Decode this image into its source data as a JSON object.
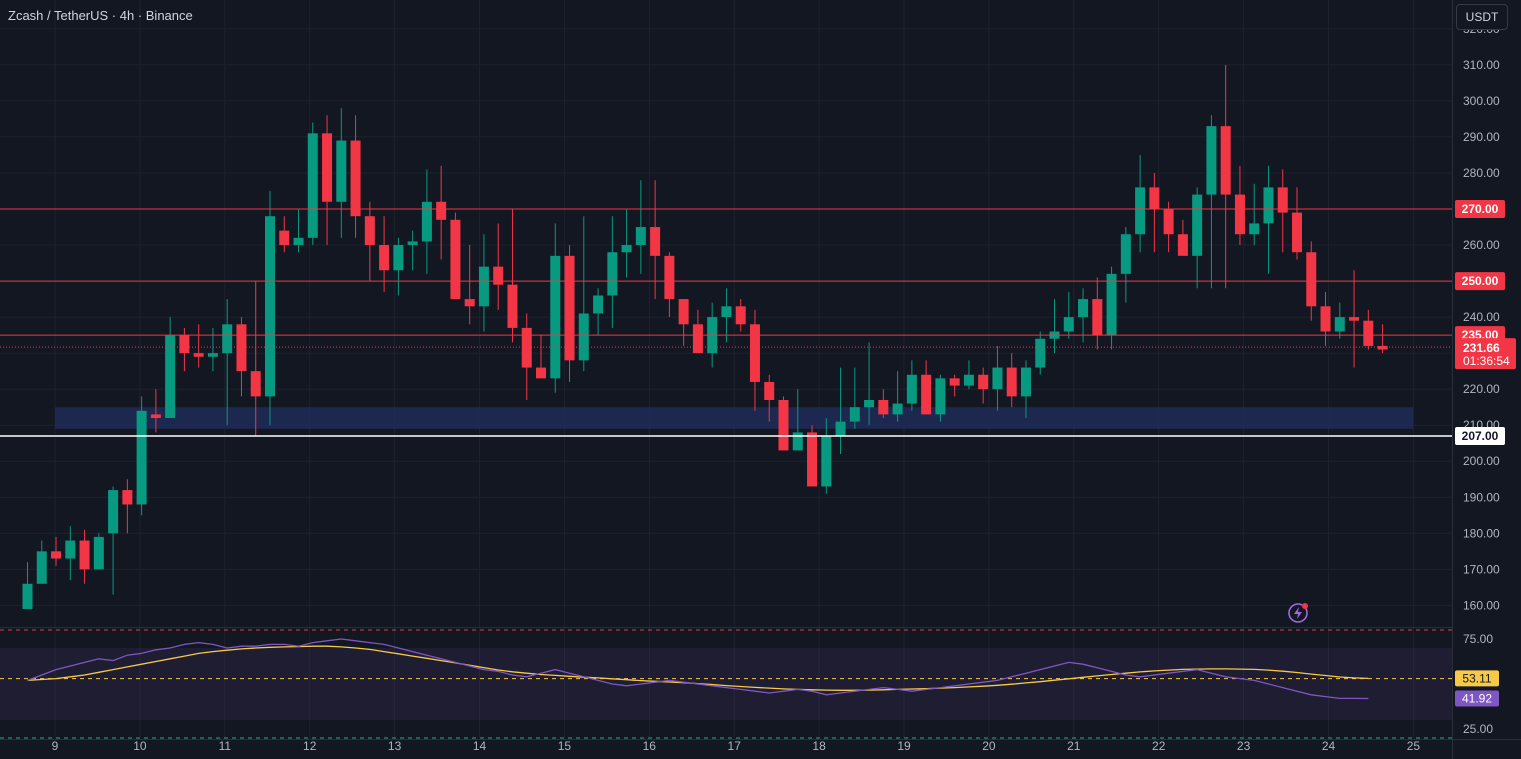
{
  "header": {
    "symbol_title": "Zcash / TetherUS · 4h · Binance",
    "currency_button": "USDT"
  },
  "colors": {
    "background": "#131722",
    "up": "#089981",
    "down": "#f23645",
    "level_line": "#f23645",
    "support_line": "#ffffff",
    "zone": "#1e2b57",
    "rsi_line": "#7e57c2",
    "rsi_ma_line": "#f7c948",
    "grid": "#1e222d"
  },
  "chart_data": [
    {
      "type": "candlestick",
      "y_ticks": [
        "160.00",
        "170.00",
        "180.00",
        "190.00",
        "200.00",
        "210.00",
        "220.00",
        "230.00",
        "240.00",
        "250.00",
        "260.00",
        "270.00",
        "280.00",
        "290.00",
        "300.00",
        "310.00",
        "320.00"
      ],
      "x_ticks": [
        "9",
        "10",
        "11",
        "12",
        "13",
        "14",
        "15",
        "16",
        "17",
        "18",
        "19",
        "20",
        "21",
        "22",
        "23",
        "24",
        "25"
      ],
      "ylim": [
        154,
        328
      ],
      "last_price": 231.66,
      "last_price_label": "231.66",
      "countdown": "01:36:54",
      "levels": [
        {
          "value": 270,
          "label": "270.00",
          "style": "red"
        },
        {
          "value": 250,
          "label": "250.00",
          "style": "red"
        },
        {
          "value": 235,
          "label": "235.00",
          "style": "red"
        },
        {
          "value": 207,
          "label": "207.00",
          "style": "white"
        }
      ],
      "zone": {
        "from": 209,
        "to": 215,
        "start_day": 9.0,
        "end_day": 25.0
      },
      "candles": [
        [
          159,
          159,
          166,
          172
        ],
        [
          166,
          166,
          175,
          178
        ],
        [
          175,
          171,
          173,
          179
        ],
        [
          173,
          167,
          178,
          182
        ],
        [
          178,
          166,
          170,
          181
        ],
        [
          170,
          170,
          179,
          180
        ],
        [
          180,
          163,
          192,
          193
        ],
        [
          192,
          180,
          188,
          195
        ],
        [
          188,
          185,
          214,
          218
        ],
        [
          213,
          208,
          212,
          220
        ],
        [
          212,
          212,
          235,
          240
        ],
        [
          235,
          225,
          230,
          237
        ],
        [
          230,
          226,
          229,
          238
        ],
        [
          229,
          225,
          230,
          237
        ],
        [
          230,
          210,
          238,
          245
        ],
        [
          238,
          218,
          225,
          240
        ],
        [
          225,
          207,
          218,
          250
        ],
        [
          218,
          210,
          268,
          275
        ],
        [
          264,
          258,
          260,
          268
        ],
        [
          260,
          258,
          262,
          270
        ],
        [
          262,
          260,
          291,
          294
        ],
        [
          291,
          260,
          272,
          296
        ],
        [
          272,
          262,
          289,
          298
        ],
        [
          289,
          262,
          268,
          296
        ],
        [
          268,
          250,
          260,
          272
        ],
        [
          260,
          247,
          253,
          268
        ],
        [
          253,
          246,
          260,
          262
        ],
        [
          260,
          253,
          261,
          264
        ],
        [
          261,
          252,
          272,
          281
        ],
        [
          272,
          256,
          267,
          282
        ],
        [
          267,
          251,
          245,
          269
        ],
        [
          245,
          238,
          243,
          260
        ],
        [
          243,
          236,
          254,
          263
        ],
        [
          254,
          242,
          249,
          266
        ],
        [
          249,
          233,
          237,
          270
        ],
        [
          237,
          217,
          226,
          241
        ],
        [
          226,
          225,
          223,
          235
        ],
        [
          223,
          219,
          257,
          266
        ],
        [
          257,
          222,
          228,
          260
        ],
        [
          228,
          225,
          241,
          268
        ],
        [
          241,
          235,
          246,
          248
        ],
        [
          246,
          237,
          258,
          268
        ],
        [
          258,
          251,
          260,
          270
        ],
        [
          260,
          252,
          265,
          278
        ],
        [
          265,
          245,
          257,
          278
        ],
        [
          257,
          240,
          245,
          258
        ],
        [
          245,
          232,
          238,
          245
        ],
        [
          238,
          233,
          230,
          242
        ],
        [
          230,
          226,
          240,
          244
        ],
        [
          240,
          233,
          243,
          248
        ],
        [
          243,
          236,
          238,
          245
        ],
        [
          238,
          214,
          222,
          242
        ],
        [
          222,
          211,
          217,
          224
        ],
        [
          217,
          211,
          203,
          218
        ],
        [
          203,
          208,
          208,
          220
        ],
        [
          208,
          206,
          193,
          210
        ],
        [
          193,
          191,
          207,
          212
        ],
        [
          207,
          202,
          211,
          226
        ],
        [
          211,
          209,
          215,
          226
        ],
        [
          215,
          210,
          217,
          233
        ],
        [
          217,
          212,
          213,
          220
        ],
        [
          213,
          211,
          216,
          225
        ],
        [
          216,
          214,
          224,
          228
        ],
        [
          224,
          218,
          213,
          228
        ],
        [
          213,
          211,
          223,
          224
        ],
        [
          223,
          218,
          221,
          224
        ],
        [
          221,
          220,
          224,
          228
        ],
        [
          224,
          216,
          220,
          226
        ],
        [
          220,
          214,
          226,
          232
        ],
        [
          226,
          215,
          218,
          230
        ],
        [
          218,
          212,
          226,
          228
        ],
        [
          226,
          224,
          234,
          236
        ],
        [
          234,
          230,
          236,
          245
        ],
        [
          236,
          234,
          240,
          247
        ],
        [
          240,
          233,
          245,
          248
        ],
        [
          245,
          231,
          235,
          251
        ],
        [
          235,
          231,
          252,
          254
        ],
        [
          252,
          244,
          263,
          265
        ],
        [
          263,
          258,
          276,
          285
        ],
        [
          276,
          258,
          270,
          280
        ],
        [
          270,
          258,
          263,
          272
        ],
        [
          263,
          258,
          257,
          267
        ],
        [
          257,
          248,
          274,
          276
        ],
        [
          274,
          248,
          293,
          296
        ],
        [
          293,
          248,
          274,
          310
        ],
        [
          274,
          260,
          263,
          282
        ],
        [
          263,
          260,
          266,
          277
        ],
        [
          266,
          252,
          276,
          282
        ],
        [
          276,
          258,
          269,
          281
        ],
        [
          269,
          256,
          258,
          276
        ],
        [
          258,
          239,
          243,
          261
        ],
        [
          243,
          232,
          236,
          247
        ],
        [
          236,
          234,
          240,
          244
        ],
        [
          240,
          226,
          239,
          253
        ],
        [
          239,
          231,
          232,
          242
        ],
        [
          232,
          230,
          231,
          238
        ]
      ]
    },
    {
      "type": "line",
      "name": "RSI",
      "ylim": [
        20,
        80
      ],
      "y_ticks": [
        "25.00",
        "75.00"
      ],
      "bands": [
        30,
        70
      ],
      "levels": [
        80,
        53,
        20
      ],
      "rsi_label": "41.92",
      "ma_label": "53.11",
      "rsi": [
        52,
        55,
        58,
        60,
        62,
        64,
        63,
        66,
        67,
        69,
        70,
        72,
        73,
        72,
        70,
        71,
        71,
        72,
        72,
        71,
        73,
        74,
        75,
        74,
        73,
        72,
        70,
        68,
        66,
        64,
        62,
        60,
        58,
        57,
        55,
        54,
        56,
        58,
        56,
        54,
        52,
        50,
        49,
        50,
        51,
        52,
        51,
        50,
        49,
        48,
        47,
        46,
        45,
        46,
        47,
        46,
        44,
        45,
        46,
        47,
        48,
        47,
        46,
        47,
        48,
        49,
        50,
        51,
        52,
        54,
        56,
        58,
        60,
        62,
        61,
        59,
        57,
        55,
        54,
        55,
        56,
        57,
        58,
        56,
        54,
        53,
        52,
        50,
        48,
        46,
        44,
        43,
        42,
        42,
        41.92
      ],
      "rsi_ma": [
        52,
        52.5,
        53,
        54,
        55,
        56.5,
        58,
        59.5,
        61,
        62.5,
        64,
        65.5,
        67,
        68,
        68.8,
        69.5,
        70,
        70.4,
        70.6,
        70.8,
        71,
        71,
        70.6,
        70,
        69.2,
        68,
        66.8,
        65.5,
        64.3,
        63,
        61.7,
        60.4,
        59.1,
        57.8,
        56.8,
        56,
        55.3,
        54.8,
        54.3,
        53.8,
        53.4,
        52.9,
        52.4,
        51.9,
        51.5,
        51.1,
        50.7,
        50.2,
        49.7,
        49.1,
        48.6,
        48.1,
        47.7,
        47.3,
        47,
        46.8,
        46.6,
        46.5,
        46.5,
        46.6,
        46.8,
        47,
        47.2,
        47.4,
        47.7,
        48,
        48.4,
        48.8,
        49.3,
        49.9,
        50.6,
        51.3,
        52.1,
        52.9,
        53.7,
        54.5,
        55.3,
        56,
        56.7,
        57.3,
        57.7,
        58.1,
        58.3,
        58.4,
        58.4,
        58.3,
        58.1,
        57.7,
        57.1,
        56.4,
        55.5,
        54.7,
        53.9,
        53.4,
        53.11
      ]
    }
  ]
}
